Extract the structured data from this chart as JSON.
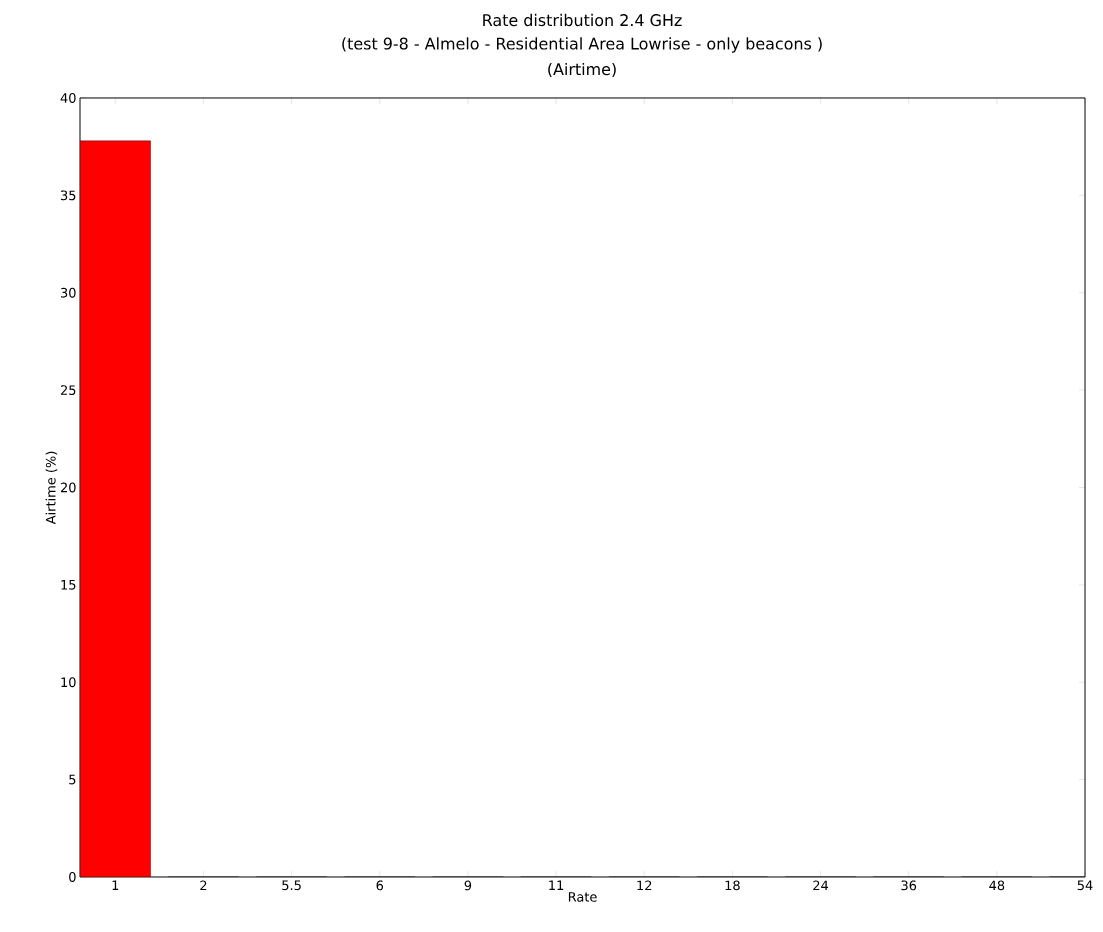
{
  "chart_data": {
    "type": "bar",
    "title": "Rate distribution 2.4 GHz",
    "subtitle": "(test 9-8 - Almelo - Residential Area Lowrise - only beacons )",
    "annotations": [
      "(Airtime)"
    ],
    "xlabel": "Rate",
    "ylabel": "Airtime (%)",
    "categories": [
      "1",
      "2",
      "5.5",
      "6",
      "9",
      "11",
      "12",
      "18",
      "24",
      "36",
      "48",
      "54"
    ],
    "values": [
      37.8,
      0,
      0,
      0,
      0,
      0,
      0,
      0,
      0,
      0,
      0,
      0
    ],
    "color": "#ff0000",
    "ylim": [
      0,
      40
    ],
    "yticks": [
      0,
      5,
      10,
      15,
      20,
      25,
      30,
      35,
      40
    ],
    "grid": false
  }
}
